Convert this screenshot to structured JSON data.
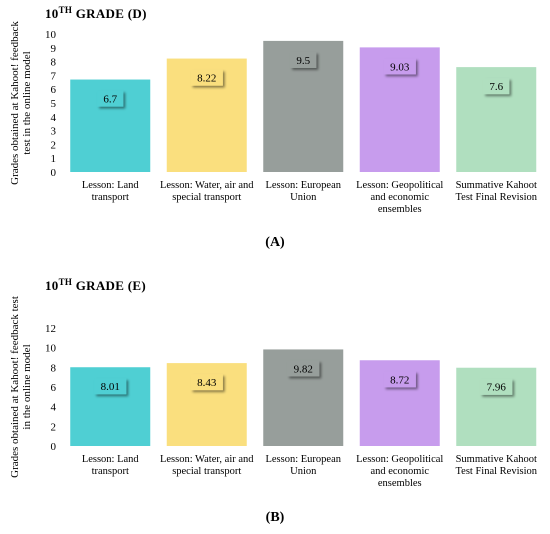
{
  "chart_data": [
    {
      "type": "bar",
      "panel_label": "(A)",
      "title_main": "10",
      "title_sup": "TH",
      "title_rest": " GRADE (D)",
      "ylabel_line1": "Grades obtained at Kahoot! feedback",
      "ylabel_line2": "test in the online model",
      "ylim": [
        0,
        10
      ],
      "yticks": [
        0,
        1,
        2,
        3,
        4,
        5,
        6,
        7,
        8,
        9,
        10
      ],
      "grid": false,
      "categories": [
        [
          "Lesson: Land",
          "transport"
        ],
        [
          "Lesson: Water, air and",
          "special transport"
        ],
        [
          "Lesson: European",
          "Union"
        ],
        [
          "Lesson: Geopolitical",
          "and economic",
          "ensembles"
        ],
        [
          "Summative Kahoot",
          "Test Final Revision"
        ]
      ],
      "values": [
        6.7,
        8.22,
        9.5,
        9.03,
        7.6
      ],
      "value_labels": [
        "6.7",
        "8.22",
        "9.5",
        "9.03",
        "7.6"
      ],
      "colors": [
        "#4fcfd3",
        "#fadf7e",
        "#979e9b",
        "#c79ced",
        "#b0dfbf"
      ]
    },
    {
      "type": "bar",
      "panel_label": "(B)",
      "title_main": "10",
      "title_sup": "TH",
      "title_rest": " GRADE (E)",
      "ylabel_line1": "Grades obtained at Kahoot! feedback test",
      "ylabel_line2": "in the online model",
      "ylim": [
        0,
        12
      ],
      "yticks": [
        0,
        2,
        4,
        6,
        8,
        10,
        12
      ],
      "grid": false,
      "categories": [
        [
          "Lesson: Land",
          "transport"
        ],
        [
          "Lesson: Water, air and",
          "special transport"
        ],
        [
          "Lesson: European",
          "Union"
        ],
        [
          "Lesson: Geopolitical",
          "and economic",
          "ensembles"
        ],
        [
          "Summative Kahoot",
          "Test Final Revision"
        ]
      ],
      "values": [
        8.01,
        8.43,
        9.82,
        8.72,
        7.96
      ],
      "value_labels": [
        "8.01",
        "8.43",
        "9.82",
        "8.72",
        "7.96"
      ],
      "colors": [
        "#4fcfd3",
        "#fadf7e",
        "#979e9b",
        "#c79ced",
        "#b0dfbf"
      ]
    }
  ]
}
